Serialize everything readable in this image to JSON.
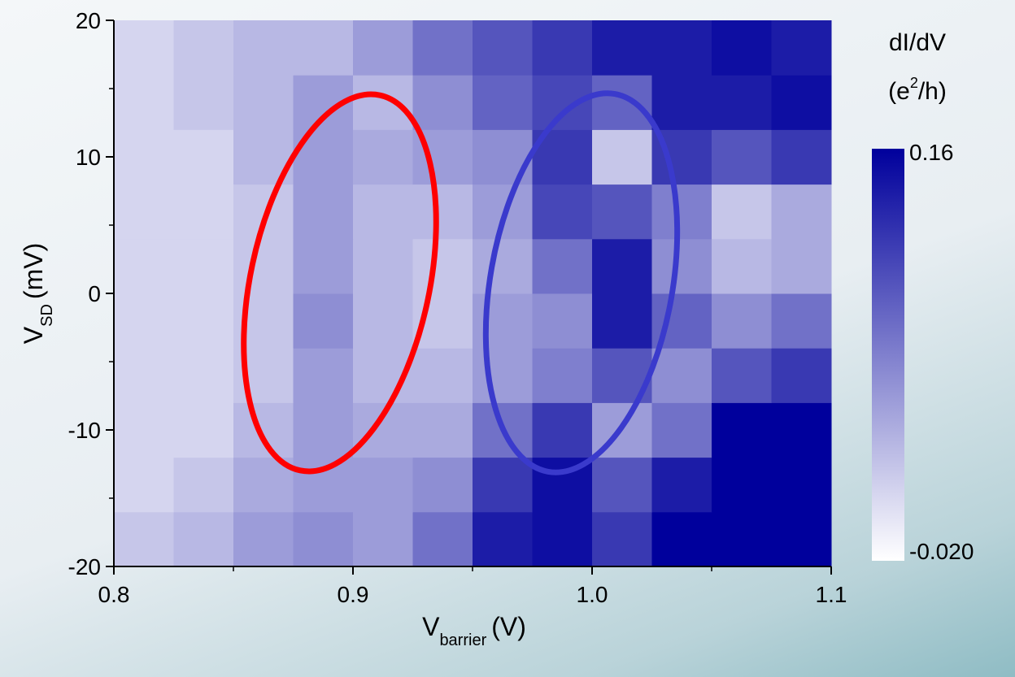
{
  "chart_data": {
    "type": "heatmap",
    "x_label": {
      "text": "V",
      "subscript": "barrier",
      "unit": "(V)"
    },
    "y_label": {
      "text": "V",
      "subscript": "SD",
      "unit": "(mV)"
    },
    "xlim": [
      0.8,
      1.1
    ],
    "xticks": [
      0.8,
      0.9,
      {
        "value": 1,
        "label": "1.0"
      },
      1.1
    ],
    "xminorticks": [
      0.85,
      0.95,
      1.05
    ],
    "ylim": [
      -20,
      20
    ],
    "yticks": [
      -20,
      -10,
      0,
      10,
      20
    ],
    "yminorticks": [
      -15,
      -5,
      5,
      15
    ],
    "xbins": [
      0.8,
      0.825,
      0.85,
      0.875,
      0.9,
      0.925,
      0.95,
      0.975,
      1,
      1.025,
      1.05,
      1.075,
      1.1
    ],
    "ybins": [
      -20,
      -16,
      -12,
      -8,
      -4,
      0,
      4,
      8,
      12,
      16,
      20
    ],
    "z": [
      [
        0.02,
        0.03,
        0.05,
        0.06,
        0.05,
        0.08,
        0.14,
        0.15,
        0.12,
        0.16,
        0.16,
        0.16
      ],
      [
        0.01,
        0.02,
        0.04,
        0.05,
        0.05,
        0.06,
        0.12,
        0.15,
        0.1,
        0.14,
        0.16,
        0.16
      ],
      [
        0.01,
        0.01,
        0.03,
        0.05,
        0.04,
        0.04,
        0.08,
        0.12,
        0.05,
        0.08,
        0.16,
        0.16
      ],
      [
        0.01,
        0.01,
        0.02,
        0.05,
        0.03,
        0.03,
        0.05,
        0.07,
        0.1,
        0.06,
        0.1,
        0.12
      ],
      [
        0.01,
        0.01,
        0.02,
        0.06,
        0.03,
        0.02,
        0.05,
        0.06,
        0.14,
        0.09,
        0.06,
        0.08
      ],
      [
        0.01,
        0.01,
        0.02,
        0.05,
        0.03,
        0.02,
        0.04,
        0.08,
        0.14,
        0.06,
        0.03,
        0.04
      ],
      [
        0.01,
        0.01,
        0.02,
        0.05,
        0.03,
        0.03,
        0.05,
        0.11,
        0.1,
        0.07,
        0.02,
        0.04
      ],
      [
        0.01,
        0.01,
        0.03,
        0.05,
        0.04,
        0.05,
        0.06,
        0.12,
        0.02,
        0.12,
        0.1,
        0.12
      ],
      [
        0.01,
        0.02,
        0.03,
        0.05,
        0.03,
        0.06,
        0.09,
        0.11,
        0.09,
        0.14,
        0.14,
        0.15
      ],
      [
        0.01,
        0.02,
        0.03,
        0.03,
        0.05,
        0.08,
        0.1,
        0.12,
        0.14,
        0.14,
        0.15,
        0.14
      ]
    ],
    "colorbar": {
      "title": "dI/dV",
      "unit": {
        "before": "(e",
        "sup": "2",
        "after": "/h)"
      },
      "range": [
        -0.02,
        0.16
      ],
      "ticks": [
        {
          "value": -0.02,
          "label": "-0.020"
        },
        0.16
      ],
      "colors": [
        "#ffffff",
        "#00009c"
      ]
    }
  }
}
